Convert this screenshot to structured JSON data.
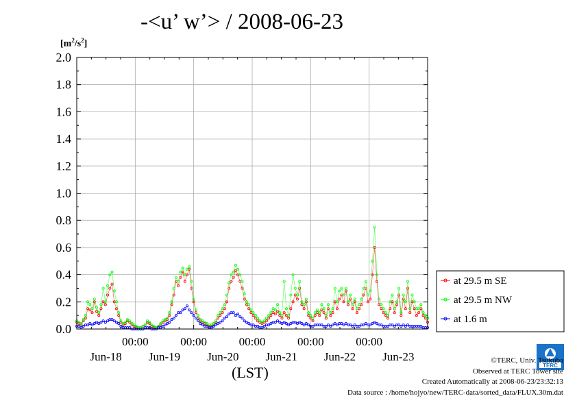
{
  "title": "-<u’ w’> / 2008-06-23",
  "unit_label": "[m",
  "unit_sup": "2",
  "unit_mid": "/s",
  "unit_sup2": "2",
  "unit_end": "]",
  "xlabel": "(LST)",
  "credits": {
    "line1": "©TERC, Univ. Tsukuba",
    "line2": "Observed at TERC Tower site",
    "line3": "Created Automatically at 2008-06-23/23:32:13",
    "line4": "Data source : /home/hojyo/new/TERC-data/sorted_data/FLUX.30m.dat"
  },
  "logo_text": "TERC",
  "chart_data": {
    "type": "line",
    "ylim": [
      0,
      2.0
    ],
    "yticks": [
      "0.0",
      "0.2",
      "0.4",
      "0.6",
      "0.8",
      "1.0",
      "1.2",
      "1.4",
      "1.6",
      "1.8",
      "2.0"
    ],
    "x_ticks_time": [
      "00:00",
      "00:00",
      "00:00",
      "00:00",
      "00:00"
    ],
    "x_ticks_day": [
      "Jun-18",
      "Jun-19",
      "Jun-20",
      "Jun-21",
      "Jun-22",
      "Jun-23"
    ],
    "grid": true,
    "legend_position": "right",
    "x_range_days": [
      0,
      6
    ],
    "series": [
      {
        "name": "at 29.5 m SE",
        "color": "#ff0000",
        "values": [
          0.05,
          0.04,
          0.03,
          0.06,
          0.08,
          0.15,
          0.14,
          0.12,
          0.2,
          0.13,
          0.1,
          0.15,
          0.2,
          0.18,
          0.25,
          0.3,
          0.33,
          0.2,
          0.15,
          0.1,
          0.05,
          0.03,
          0.04,
          0.06,
          0.05,
          0.03,
          0.02,
          0.01,
          0.01,
          0.01,
          0.02,
          0.03,
          0.05,
          0.04,
          0.02,
          0.01,
          0.01,
          0.02,
          0.03,
          0.05,
          0.06,
          0.07,
          0.1,
          0.18,
          0.25,
          0.35,
          0.32,
          0.38,
          0.42,
          0.35,
          0.4,
          0.44,
          0.3,
          0.2,
          0.12,
          0.08,
          0.06,
          0.05,
          0.04,
          0.03,
          0.02,
          0.02,
          0.03,
          0.05,
          0.08,
          0.1,
          0.12,
          0.15,
          0.2,
          0.3,
          0.35,
          0.38,
          0.43,
          0.4,
          0.35,
          0.3,
          0.22,
          0.18,
          0.15,
          0.12,
          0.1,
          0.08,
          0.06,
          0.05,
          0.04,
          0.05,
          0.06,
          0.08,
          0.1,
          0.12,
          0.11,
          0.13,
          0.1,
          0.08,
          0.12,
          0.1,
          0.08,
          0.15,
          0.2,
          0.25,
          0.22,
          0.3,
          0.18,
          0.15,
          0.2,
          0.1,
          0.08,
          0.06,
          0.1,
          0.12,
          0.1,
          0.14,
          0.12,
          0.08,
          0.15,
          0.1,
          0.12,
          0.2,
          0.15,
          0.22,
          0.25,
          0.2,
          0.28,
          0.18,
          0.22,
          0.15,
          0.2,
          0.12,
          0.15,
          0.18,
          0.25,
          0.3,
          0.2,
          0.22,
          0.4,
          0.6,
          0.35,
          0.18,
          0.15,
          0.12,
          0.1,
          0.08,
          0.15,
          0.2,
          0.12,
          0.18,
          0.25,
          0.1,
          0.22,
          0.15,
          0.3,
          0.12,
          0.2,
          0.15,
          0.1,
          0.12,
          0.15,
          0.1,
          0.08,
          0.05
        ]
      },
      {
        "name": "at 29.5 m NW",
        "color": "#00ff00",
        "values": [
          0.06,
          0.05,
          0.04,
          0.07,
          0.1,
          0.2,
          0.18,
          0.15,
          0.22,
          0.16,
          0.12,
          0.18,
          0.3,
          0.2,
          0.32,
          0.4,
          0.42,
          0.28,
          0.2,
          0.12,
          0.06,
          0.04,
          0.05,
          0.07,
          0.06,
          0.04,
          0.03,
          0.02,
          0.01,
          0.01,
          0.02,
          0.03,
          0.06,
          0.05,
          0.03,
          0.02,
          0.01,
          0.02,
          0.04,
          0.06,
          0.07,
          0.08,
          0.12,
          0.2,
          0.3,
          0.38,
          0.35,
          0.42,
          0.45,
          0.4,
          0.44,
          0.46,
          0.35,
          0.22,
          0.14,
          0.1,
          0.07,
          0.06,
          0.05,
          0.04,
          0.03,
          0.03,
          0.04,
          0.06,
          0.1,
          0.12,
          0.15,
          0.18,
          0.25,
          0.34,
          0.4,
          0.42,
          0.47,
          0.44,
          0.4,
          0.35,
          0.26,
          0.2,
          0.18,
          0.14,
          0.12,
          0.1,
          0.08,
          0.06,
          0.05,
          0.06,
          0.08,
          0.1,
          0.12,
          0.15,
          0.14,
          0.18,
          0.12,
          0.1,
          0.35,
          0.15,
          0.1,
          0.25,
          0.4,
          0.3,
          0.25,
          0.35,
          0.2,
          0.18,
          0.22,
          0.12,
          0.1,
          0.08,
          0.12,
          0.14,
          0.12,
          0.18,
          0.15,
          0.1,
          0.18,
          0.12,
          0.15,
          0.3,
          0.2,
          0.28,
          0.3,
          0.25,
          0.3,
          0.2,
          0.25,
          0.18,
          0.22,
          0.15,
          0.18,
          0.22,
          0.3,
          0.35,
          0.25,
          0.28,
          0.5,
          0.75,
          0.4,
          0.22,
          0.18,
          0.15,
          0.12,
          0.1,
          0.2,
          0.25,
          0.15,
          0.2,
          0.3,
          0.12,
          0.25,
          0.2,
          0.35,
          0.15,
          0.25,
          0.2,
          0.15,
          0.15,
          0.18,
          0.12,
          0.1,
          0.08
        ]
      },
      {
        "name": "at 1.6 m",
        "color": "#0000ff",
        "values": [
          0.02,
          0.02,
          0.01,
          0.02,
          0.03,
          0.03,
          0.04,
          0.03,
          0.04,
          0.05,
          0.04,
          0.05,
          0.06,
          0.05,
          0.06,
          0.07,
          0.07,
          0.06,
          0.05,
          0.04,
          0.02,
          0.01,
          0.01,
          0.01,
          0.01,
          0.0,
          0.0,
          0.0,
          0.0,
          0.0,
          0.0,
          0.01,
          0.01,
          0.01,
          0.0,
          0.0,
          0.0,
          0.01,
          0.01,
          0.02,
          0.03,
          0.04,
          0.05,
          0.07,
          0.08,
          0.1,
          0.12,
          0.12,
          0.14,
          0.15,
          0.17,
          0.14,
          0.12,
          0.1,
          0.08,
          0.06,
          0.04,
          0.03,
          0.02,
          0.02,
          0.01,
          0.01,
          0.02,
          0.03,
          0.04,
          0.05,
          0.06,
          0.08,
          0.09,
          0.11,
          0.12,
          0.12,
          0.1,
          0.11,
          0.09,
          0.08,
          0.06,
          0.05,
          0.04,
          0.03,
          0.03,
          0.02,
          0.02,
          0.01,
          0.01,
          0.02,
          0.03,
          0.03,
          0.04,
          0.05,
          0.05,
          0.06,
          0.05,
          0.04,
          0.05,
          0.04,
          0.03,
          0.04,
          0.05,
          0.05,
          0.04,
          0.05,
          0.04,
          0.03,
          0.04,
          0.03,
          0.02,
          0.02,
          0.03,
          0.03,
          0.03,
          0.03,
          0.02,
          0.02,
          0.03,
          0.02,
          0.03,
          0.04,
          0.03,
          0.04,
          0.04,
          0.03,
          0.04,
          0.03,
          0.03,
          0.02,
          0.03,
          0.02,
          0.02,
          0.03,
          0.03,
          0.04,
          0.03,
          0.03,
          0.04,
          0.05,
          0.04,
          0.03,
          0.03,
          0.02,
          0.02,
          0.02,
          0.03,
          0.03,
          0.02,
          0.03,
          0.03,
          0.02,
          0.03,
          0.02,
          0.03,
          0.02,
          0.02,
          0.02,
          0.02,
          0.02,
          0.02,
          0.01,
          0.01,
          0.01
        ]
      }
    ]
  }
}
